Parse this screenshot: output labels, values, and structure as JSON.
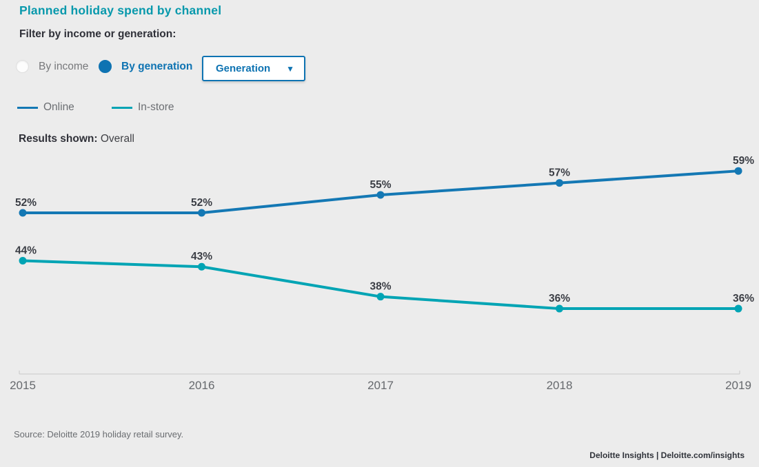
{
  "header": {
    "title": "Planned holiday spend by channel"
  },
  "filters": {
    "label": "Filter by income or generation:",
    "options": [
      {
        "label": "By income",
        "selected": false
      },
      {
        "label": "By generation",
        "selected": true
      }
    ],
    "dropdown": {
      "value": "Generation",
      "arrow_icon": "▼"
    }
  },
  "legend": {
    "items": [
      {
        "label": "Online",
        "color": "#1478B4"
      },
      {
        "label": "In-store",
        "color": "#00A4B4"
      }
    ]
  },
  "results": {
    "label": "Results shown:",
    "value": "Overall"
  },
  "chart_data": {
    "type": "line",
    "title": "Planned holiday spend by channel",
    "x": [
      2015,
      2016,
      2017,
      2018,
      2019
    ],
    "series": [
      {
        "name": "Online",
        "color": "#1478B4",
        "values": [
          52,
          52,
          55,
          57,
          59
        ],
        "labels": [
          "52%",
          "52%",
          "55%",
          "57%",
          "59%"
        ]
      },
      {
        "name": "In-store",
        "color": "#00A4B4",
        "values": [
          44,
          43,
          38,
          36,
          36
        ],
        "labels": [
          "44%",
          "43%",
          "38%",
          "36%",
          "36%"
        ]
      }
    ],
    "xlabel": "",
    "ylabel": "",
    "value_format": "percent",
    "data_labels": true,
    "grid": false,
    "legend_position": "top-left",
    "ylim": [
      30,
      65
    ]
  },
  "source": {
    "text": "Source: Deloitte 2019 holiday retail survey."
  },
  "footer": {
    "text": "Deloitte Insights | Deloitte.com/insights"
  },
  "colors": {
    "background": "#ECECEC",
    "title_teal": "#0899AC",
    "ui_blue": "#0E73B2",
    "online_line": "#1478B4",
    "instore_line": "#00A4B4",
    "axis_gray": "#C9C9C9",
    "data_label_text": "#3B3E45",
    "year_label_text": "#66696D"
  }
}
